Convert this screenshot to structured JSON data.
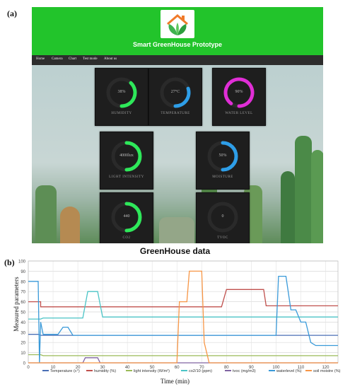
{
  "panel_labels": {
    "a": "(a)",
    "b": "(b)"
  },
  "app": {
    "title": "Smart GreenHouse Prototype",
    "nav": [
      "Home",
      "Camera",
      "Chart",
      "Test mode",
      "About us"
    ],
    "tiles": [
      {
        "value": "38%",
        "label": "HUMIDITY",
        "color": "#2ee85a",
        "level": 0.38
      },
      {
        "value": "27°C",
        "label": "TEMPERATURE",
        "color": "#2e9ee8",
        "level": 0.3
      },
      {
        "value": "90%",
        "label": "WATER LEVEL",
        "color": "#e02ed6",
        "level": 0.9
      },
      {
        "value": "4000lux",
        "label": "LIGHT INTENSITY",
        "color": "#2ee85a",
        "level": 0.5
      },
      {
        "value": "50%",
        "label": "MOISTURE",
        "color": "#2e9ee8",
        "level": 0.5
      },
      {
        "value": "440",
        "label": "CO2",
        "color": "#2ee85a",
        "level": 0.5
      },
      {
        "value": "0",
        "label": "TVOC",
        "color": "#2ee85a",
        "level": 0
      }
    ]
  },
  "chart_data": {
    "type": "line",
    "title": "GreenHouse data",
    "xlabel": "Time (min)",
    "ylabel": "Measured parameters",
    "xlim": [
      0,
      125
    ],
    "ylim": [
      0,
      100
    ],
    "xticks": [
      0,
      10,
      20,
      30,
      40,
      50,
      60,
      70,
      80,
      90,
      100,
      110,
      120
    ],
    "yticks": [
      0,
      10,
      20,
      30,
      40,
      50,
      60,
      70,
      80,
      90,
      100
    ],
    "grid": true,
    "legend_position": "bottom",
    "series": [
      {
        "name": "Temperature (c°)",
        "color": "#4a6fb5",
        "x": [
          0,
          4,
          5,
          125
        ],
        "y": [
          28,
          28,
          27,
          27
        ]
      },
      {
        "name": "humidity (%)",
        "color": "#c0504d",
        "x": [
          0,
          5,
          5,
          78,
          80,
          95,
          96,
          125
        ],
        "y": [
          60,
          60,
          55,
          55,
          72,
          72,
          56,
          56
        ]
      },
      {
        "name": "light intensity (W/m²)",
        "color": "#9bbb59",
        "x": [
          0,
          5,
          6,
          125
        ],
        "y": [
          8,
          8,
          7,
          7
        ]
      },
      {
        "name": "co2/10 (ppm)",
        "color": "#4bc4c6",
        "x": [
          0,
          5,
          6,
          22,
          24,
          28,
          30,
          125
        ],
        "y": [
          43,
          43,
          44,
          44,
          70,
          70,
          45,
          45
        ]
      },
      {
        "name": "tvoc (mg/m3)",
        "color": "#8064a2",
        "x": [
          0,
          22,
          23,
          28,
          29,
          125
        ],
        "y": [
          0,
          0,
          5,
          5,
          0,
          0
        ]
      },
      {
        "name": "waterlevel (%)",
        "color": "#3a9ad9",
        "x": [
          0,
          4,
          4.5,
          5,
          6,
          12,
          14,
          16,
          18,
          100,
          101,
          104,
          106,
          108,
          110,
          112,
          114,
          116,
          125
        ],
        "y": [
          80,
          80,
          0,
          40,
          28,
          28,
          35,
          35,
          27,
          27,
          85,
          85,
          52,
          52,
          40,
          40,
          20,
          17,
          17
        ]
      },
      {
        "name": "soil moistre (%)",
        "color": "#f79646",
        "x": [
          0,
          60,
          61,
          64,
          65,
          70,
          71,
          73,
          74,
          125
        ],
        "y": [
          0,
          0,
          60,
          60,
          90,
          90,
          20,
          0,
          0,
          0
        ]
      }
    ]
  }
}
